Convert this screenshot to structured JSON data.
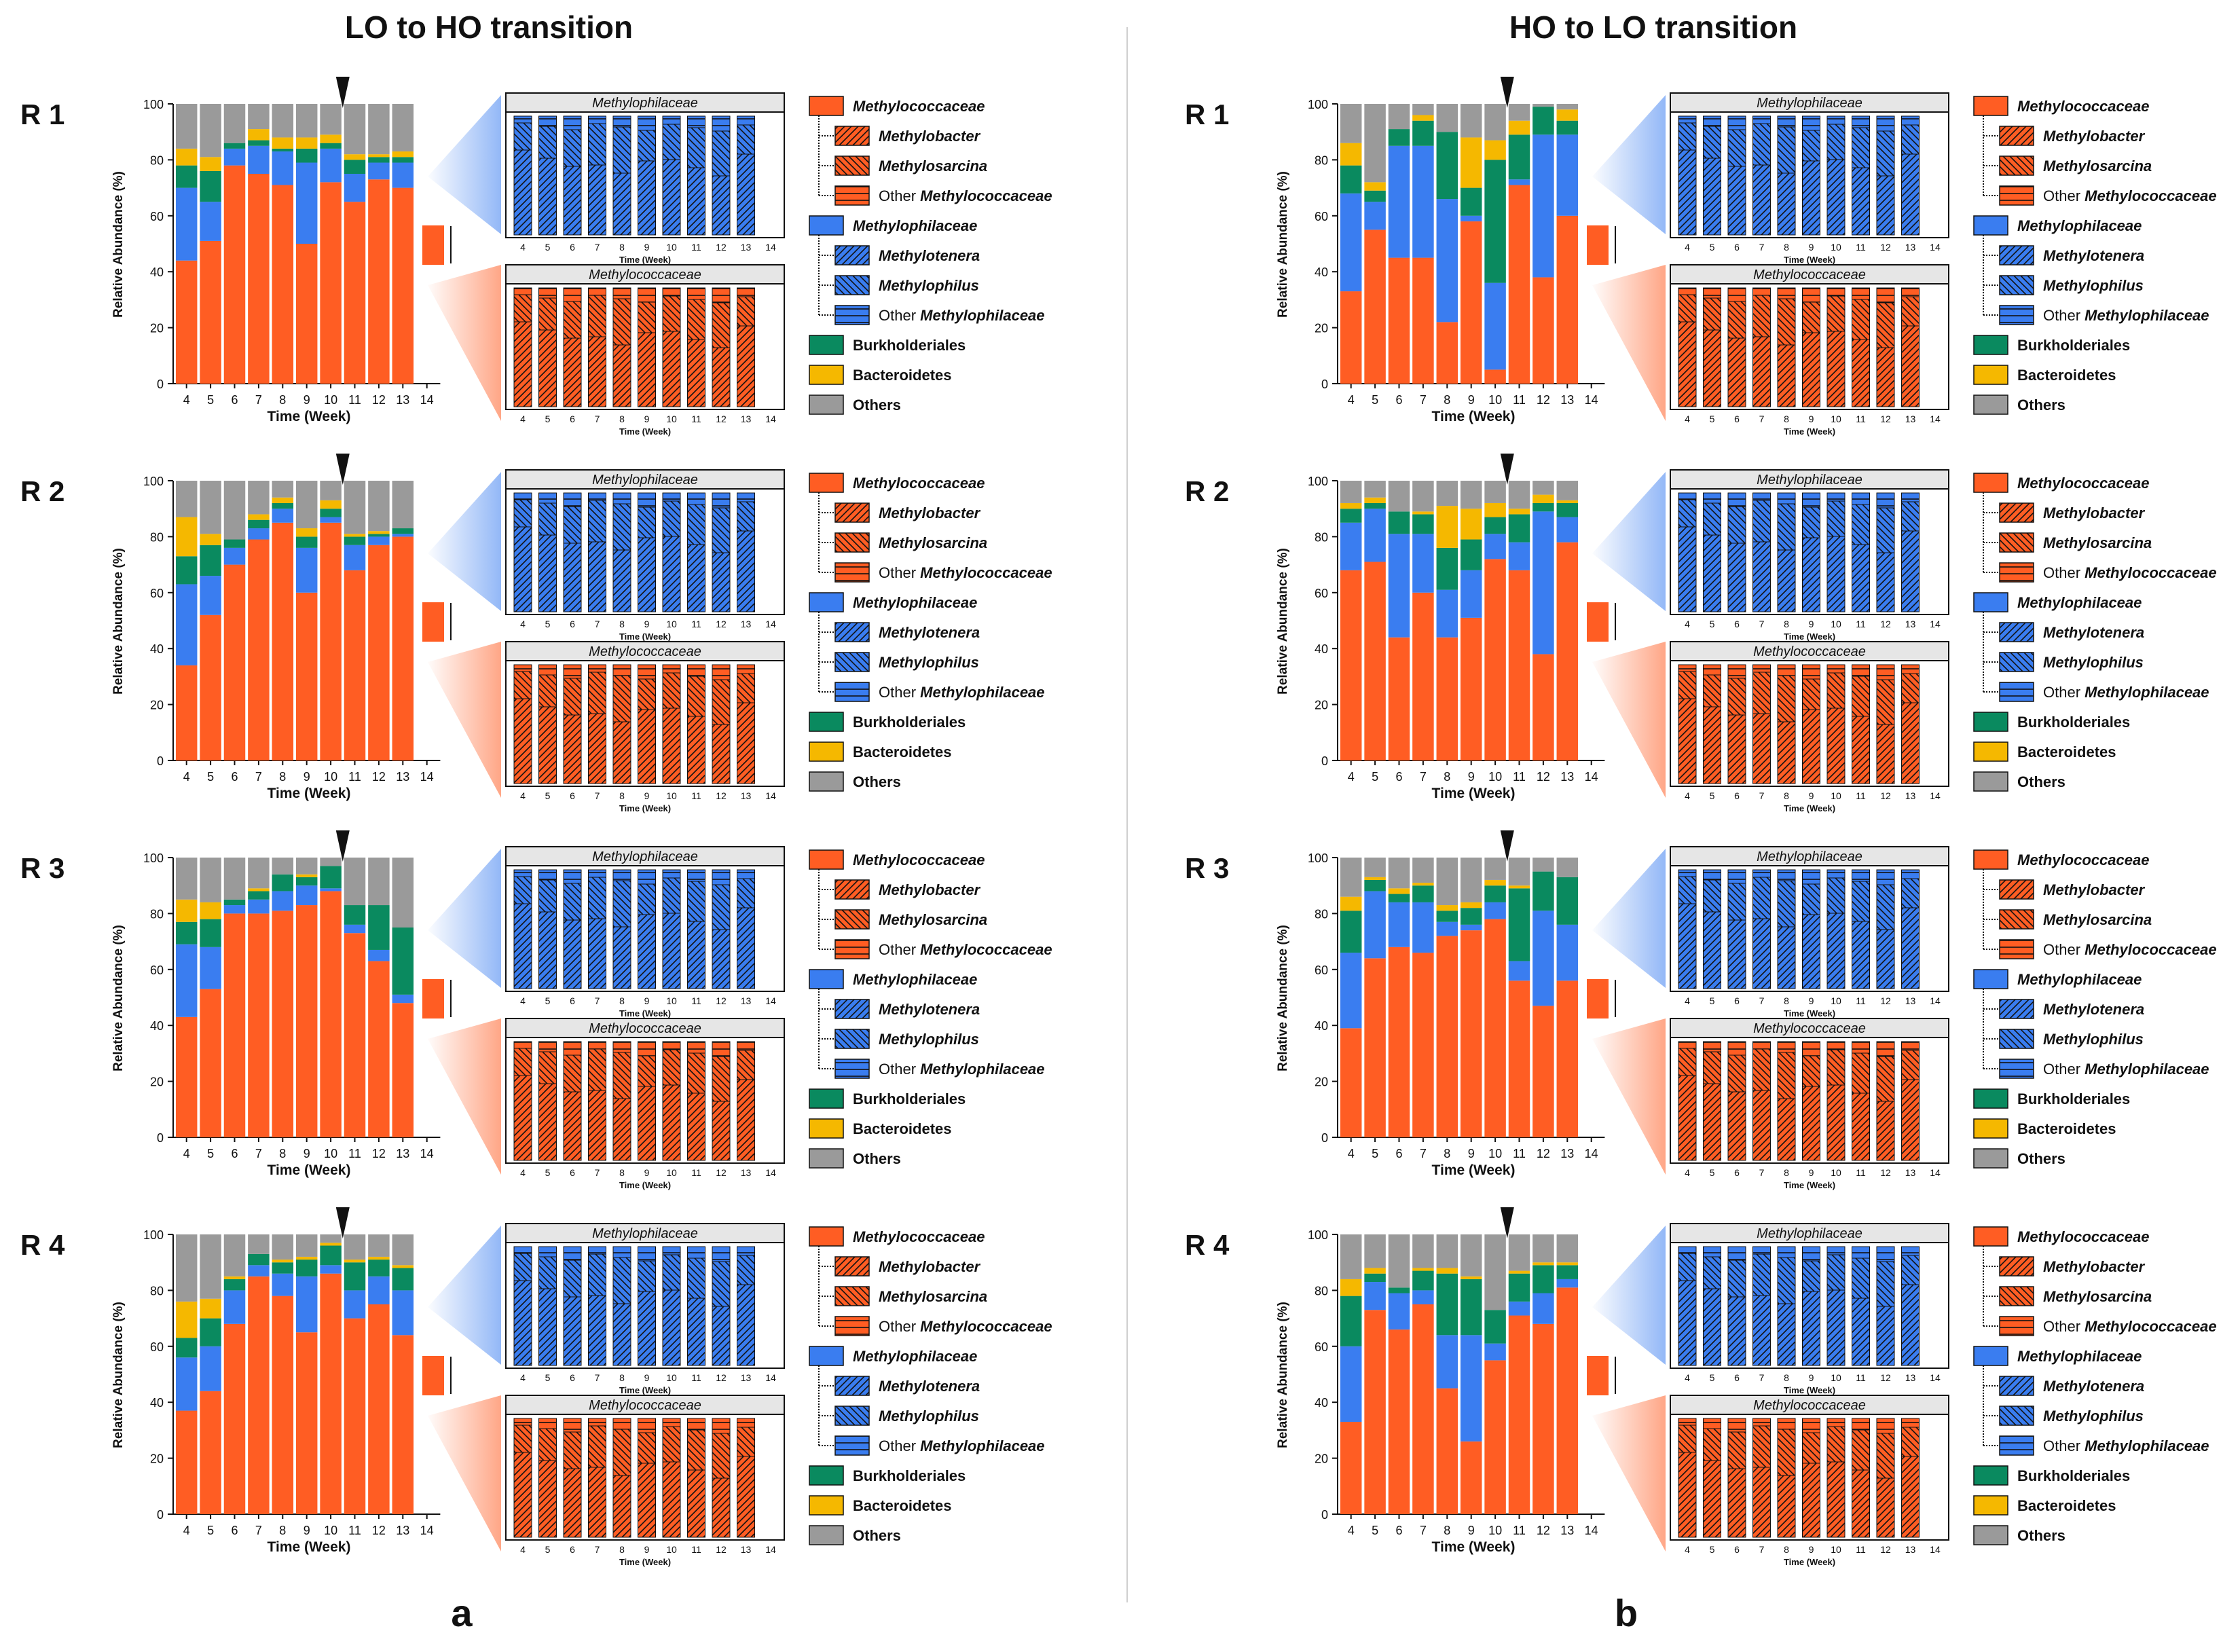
{
  "panels": [
    {
      "title": "LO to HO transition",
      "letter": "a",
      "reactors": [
        {
          "label": "R 1",
          "chart_index": 0
        },
        {
          "label": "R 2",
          "chart_index": 1
        },
        {
          "label": "R 3",
          "chart_index": 2
        },
        {
          "label": "R 4",
          "chart_index": 3
        }
      ]
    },
    {
      "title": "HO to LO transition",
      "letter": "b",
      "reactors": [
        {
          "label": "R 1",
          "chart_index": 4
        },
        {
          "label": "R 2",
          "chart_index": 5
        },
        {
          "label": "R 3",
          "chart_index": 6
        },
        {
          "label": "R 4",
          "chart_index": 7
        }
      ]
    }
  ],
  "axis": {
    "ylabel": "Relative Abundance (%)",
    "xlabel": "Time (Week)",
    "yticks": [
      "0",
      "20",
      "40",
      "60",
      "80",
      "100"
    ],
    "weeks": [
      "4",
      "5",
      "6",
      "7",
      "8",
      "9",
      "10",
      "11",
      "12",
      "13",
      "14"
    ]
  },
  "inset_titles": {
    "top": "Methylophilaceae",
    "bottom": "Methylococcaceae"
  },
  "legend": [
    {
      "label": "Methylococcaceae",
      "color": "#ff5d23",
      "pattern": "solid",
      "italic": true,
      "level": 0
    },
    {
      "label": "Methylobacter",
      "color": "#ff5d23",
      "pattern": "diag",
      "italic": true,
      "level": 1
    },
    {
      "label": "Methylosarcina",
      "color": "#ff5d23",
      "pattern": "cross",
      "italic": true,
      "level": 1
    },
    {
      "label_prefix": "Other ",
      "label": "Methylococcaceae",
      "color": "#ff5d23",
      "pattern": "horiz",
      "italic": true,
      "level": 1
    },
    {
      "label": "Methylophilaceae",
      "color": "#3a7df0",
      "pattern": "solid",
      "italic": true,
      "level": 0
    },
    {
      "label": "Methylotenera",
      "color": "#3a7df0",
      "pattern": "diag",
      "italic": true,
      "level": 1
    },
    {
      "label": "Methylophilus",
      "color": "#3a7df0",
      "pattern": "cross",
      "italic": true,
      "level": 1
    },
    {
      "label_prefix": "Other ",
      "label": "Methylophilaceae",
      "color": "#3a7df0",
      "pattern": "horiz",
      "italic": true,
      "level": 1
    },
    {
      "label": "Burkholderiales",
      "color": "#0a8a5f",
      "pattern": "solid",
      "italic": false,
      "level": 0
    },
    {
      "label": "Bacteroidetes",
      "color": "#f5b800",
      "pattern": "solid",
      "italic": false,
      "level": 0
    },
    {
      "label": "Others",
      "color": "#9a9a9a",
      "pattern": "solid",
      "italic": false,
      "level": 0
    }
  ],
  "chart_data": [
    {
      "type": "bar",
      "title": "R 1",
      "stacked": true,
      "transition_after_week": "10",
      "categories": [
        "4",
        "5",
        "6",
        "7",
        "8",
        "9",
        "10",
        "11",
        "12",
        "13",
        "14"
      ],
      "ylabel": "Relative Abundance (%)",
      "xlabel": "Time (Week)",
      "ylim": [
        0,
        100
      ],
      "series": [
        {
          "name": "Methylococcaceae",
          "values": [
            44,
            51,
            78,
            75,
            71,
            50,
            72,
            65,
            73,
            70,
            null
          ]
        },
        {
          "name": "Methylophilaceae",
          "values": [
            26,
            14,
            6,
            10,
            12,
            29,
            12,
            10,
            6,
            9,
            null
          ]
        },
        {
          "name": "Burkholderiales",
          "values": [
            8,
            11,
            2,
            2,
            1,
            5,
            2,
            5,
            2,
            2,
            null
          ]
        },
        {
          "name": "Bacteroidetes",
          "values": [
            6,
            5,
            0,
            4,
            4,
            4,
            3,
            2,
            1,
            2,
            null
          ]
        },
        {
          "name": "Others",
          "values": [
            16,
            19,
            14,
            9,
            12,
            12,
            11,
            18,
            18,
            17,
            null
          ]
        }
      ]
    },
    {
      "type": "bar",
      "title": "R 2",
      "stacked": true,
      "transition_after_week": "10",
      "categories": [
        "4",
        "5",
        "6",
        "7",
        "8",
        "9",
        "10",
        "11",
        "12",
        "13",
        "14"
      ],
      "ylabel": "Relative Abundance (%)",
      "xlabel": "Time (Week)",
      "ylim": [
        0,
        100
      ],
      "series": [
        {
          "name": "Methylococcaceae",
          "values": [
            34,
            52,
            70,
            79,
            85,
            60,
            85,
            68,
            77,
            80,
            null
          ]
        },
        {
          "name": "Methylophilaceae",
          "values": [
            29,
            14,
            6,
            4,
            5,
            16,
            2,
            9,
            3,
            1,
            null
          ]
        },
        {
          "name": "Burkholderiales",
          "values": [
            10,
            11,
            3,
            3,
            2,
            4,
            3,
            3,
            1,
            2,
            null
          ]
        },
        {
          "name": "Bacteroidetes",
          "values": [
            14,
            4,
            0,
            2,
            2,
            3,
            3,
            1,
            1,
            0,
            null
          ]
        },
        {
          "name": "Others",
          "values": [
            13,
            19,
            21,
            12,
            6,
            17,
            7,
            19,
            18,
            17,
            null
          ]
        }
      ]
    },
    {
      "type": "bar",
      "title": "R 3",
      "stacked": true,
      "transition_after_week": "10",
      "categories": [
        "4",
        "5",
        "6",
        "7",
        "8",
        "9",
        "10",
        "11",
        "12",
        "13",
        "14"
      ],
      "ylabel": "Relative Abundance (%)",
      "xlabel": "Time (Week)",
      "ylim": [
        0,
        100
      ],
      "series": [
        {
          "name": "Methylococcaceae",
          "values": [
            43,
            53,
            80,
            80,
            81,
            83,
            88,
            73,
            63,
            48,
            null
          ]
        },
        {
          "name": "Methylophilaceae",
          "values": [
            26,
            15,
            3,
            5,
            7,
            7,
            1,
            3,
            4,
            3,
            null
          ]
        },
        {
          "name": "Burkholderiales",
          "values": [
            8,
            10,
            2,
            3,
            6,
            3,
            8,
            7,
            16,
            24,
            null
          ]
        },
        {
          "name": "Bacteroidetes",
          "values": [
            8,
            6,
            0,
            1,
            0,
            1,
            0,
            0,
            0,
            0,
            null
          ]
        },
        {
          "name": "Others",
          "values": [
            15,
            16,
            15,
            11,
            6,
            6,
            3,
            17,
            17,
            25,
            null
          ]
        }
      ]
    },
    {
      "type": "bar",
      "title": "R 4",
      "stacked": true,
      "transition_after_week": "10",
      "categories": [
        "4",
        "5",
        "6",
        "7",
        "8",
        "9",
        "10",
        "11",
        "12",
        "13",
        "14"
      ],
      "ylabel": "Relative Abundance (%)",
      "xlabel": "Time (Week)",
      "ylim": [
        0,
        100
      ],
      "series": [
        {
          "name": "Methylococcaceae",
          "values": [
            37,
            44,
            68,
            85,
            78,
            65,
            86,
            70,
            75,
            64,
            null
          ]
        },
        {
          "name": "Methylophilaceae",
          "values": [
            19,
            16,
            12,
            4,
            8,
            20,
            3,
            10,
            10,
            16,
            null
          ]
        },
        {
          "name": "Burkholderiales",
          "values": [
            7,
            10,
            4,
            4,
            4,
            6,
            7,
            10,
            6,
            8,
            null
          ]
        },
        {
          "name": "Bacteroidetes",
          "values": [
            13,
            7,
            1,
            0,
            1,
            1,
            1,
            1,
            1,
            1,
            null
          ]
        },
        {
          "name": "Others",
          "values": [
            24,
            23,
            15,
            7,
            9,
            8,
            3,
            9,
            8,
            11,
            null
          ]
        }
      ]
    },
    {
      "type": "bar",
      "title": "R 1",
      "stacked": true,
      "transition_after_week": "10",
      "categories": [
        "4",
        "5",
        "6",
        "7",
        "8",
        "9",
        "10",
        "11",
        "12",
        "13",
        "14"
      ],
      "ylabel": "Relative Abundance (%)",
      "xlabel": "Time (Week)",
      "ylim": [
        0,
        100
      ],
      "series": [
        {
          "name": "Methylococcaceae",
          "values": [
            33,
            55,
            45,
            45,
            22,
            58,
            5,
            71,
            38,
            60,
            null
          ]
        },
        {
          "name": "Methylophilaceae",
          "values": [
            35,
            10,
            40,
            40,
            44,
            2,
            31,
            2,
            51,
            29,
            null
          ]
        },
        {
          "name": "Burkholderiales",
          "values": [
            10,
            4,
            6,
            9,
            24,
            10,
            44,
            16,
            10,
            5,
            null
          ]
        },
        {
          "name": "Bacteroidetes",
          "values": [
            8,
            3,
            0,
            2,
            0,
            18,
            7,
            5,
            0,
            4,
            null
          ]
        },
        {
          "name": "Others",
          "values": [
            14,
            28,
            9,
            4,
            10,
            12,
            13,
            6,
            1,
            2,
            null
          ]
        }
      ]
    },
    {
      "type": "bar",
      "title": "R 2",
      "stacked": true,
      "transition_after_week": "10",
      "categories": [
        "4",
        "5",
        "6",
        "7",
        "8",
        "9",
        "10",
        "11",
        "12",
        "13",
        "14"
      ],
      "ylabel": "Relative Abundance (%)",
      "xlabel": "Time (Week)",
      "ylim": [
        0,
        100
      ],
      "series": [
        {
          "name": "Methylococcaceae",
          "values": [
            68,
            71,
            44,
            60,
            44,
            51,
            72,
            68,
            38,
            78,
            null
          ]
        },
        {
          "name": "Methylophilaceae",
          "values": [
            17,
            19,
            37,
            21,
            17,
            17,
            9,
            10,
            51,
            9,
            null
          ]
        },
        {
          "name": "Burkholderiales",
          "values": [
            5,
            2,
            8,
            7,
            15,
            11,
            6,
            10,
            3,
            5,
            null
          ]
        },
        {
          "name": "Bacteroidetes",
          "values": [
            2,
            2,
            0,
            1,
            15,
            11,
            5,
            2,
            3,
            1,
            null
          ]
        },
        {
          "name": "Others",
          "values": [
            8,
            6,
            11,
            11,
            9,
            10,
            8,
            10,
            5,
            7,
            null
          ]
        }
      ]
    },
    {
      "type": "bar",
      "title": "R 3",
      "stacked": true,
      "transition_after_week": "10",
      "categories": [
        "4",
        "5",
        "6",
        "7",
        "8",
        "9",
        "10",
        "11",
        "12",
        "13",
        "14"
      ],
      "ylabel": "Relative Abundance (%)",
      "xlabel": "Time (Week)",
      "ylim": [
        0,
        100
      ],
      "series": [
        {
          "name": "Methylococcaceae",
          "values": [
            39,
            64,
            68,
            66,
            72,
            74,
            78,
            56,
            47,
            56,
            null
          ]
        },
        {
          "name": "Methylophilaceae",
          "values": [
            27,
            24,
            16,
            18,
            5,
            2,
            6,
            7,
            34,
            20,
            null
          ]
        },
        {
          "name": "Burkholderiales",
          "values": [
            15,
            4,
            3,
            6,
            4,
            6,
            6,
            26,
            14,
            17,
            null
          ]
        },
        {
          "name": "Bacteroidetes",
          "values": [
            5,
            1,
            2,
            1,
            2,
            2,
            2,
            1,
            0,
            0,
            null
          ]
        },
        {
          "name": "Others",
          "values": [
            14,
            7,
            11,
            9,
            17,
            16,
            8,
            10,
            5,
            7,
            null
          ]
        }
      ]
    },
    {
      "type": "bar",
      "title": "R 4",
      "stacked": true,
      "transition_after_week": "10",
      "categories": [
        "4",
        "5",
        "6",
        "7",
        "8",
        "9",
        "10",
        "11",
        "12",
        "13",
        "14"
      ],
      "ylabel": "Relative Abundance (%)",
      "xlabel": "Time (Week)",
      "ylim": [
        0,
        100
      ],
      "series": [
        {
          "name": "Methylococcaceae",
          "values": [
            33,
            73,
            66,
            75,
            45,
            26,
            55,
            71,
            68,
            81,
            null
          ]
        },
        {
          "name": "Methylophilaceae",
          "values": [
            27,
            10,
            13,
            5,
            19,
            38,
            6,
            5,
            11,
            3,
            null
          ]
        },
        {
          "name": "Burkholderiales",
          "values": [
            18,
            3,
            2,
            7,
            22,
            20,
            12,
            10,
            10,
            5,
            null
          ]
        },
        {
          "name": "Bacteroidetes",
          "values": [
            6,
            2,
            0,
            1,
            2,
            1,
            0,
            1,
            1,
            1,
            null
          ]
        },
        {
          "name": "Others",
          "values": [
            16,
            12,
            19,
            12,
            12,
            15,
            27,
            13,
            10,
            10,
            null
          ]
        }
      ]
    }
  ]
}
